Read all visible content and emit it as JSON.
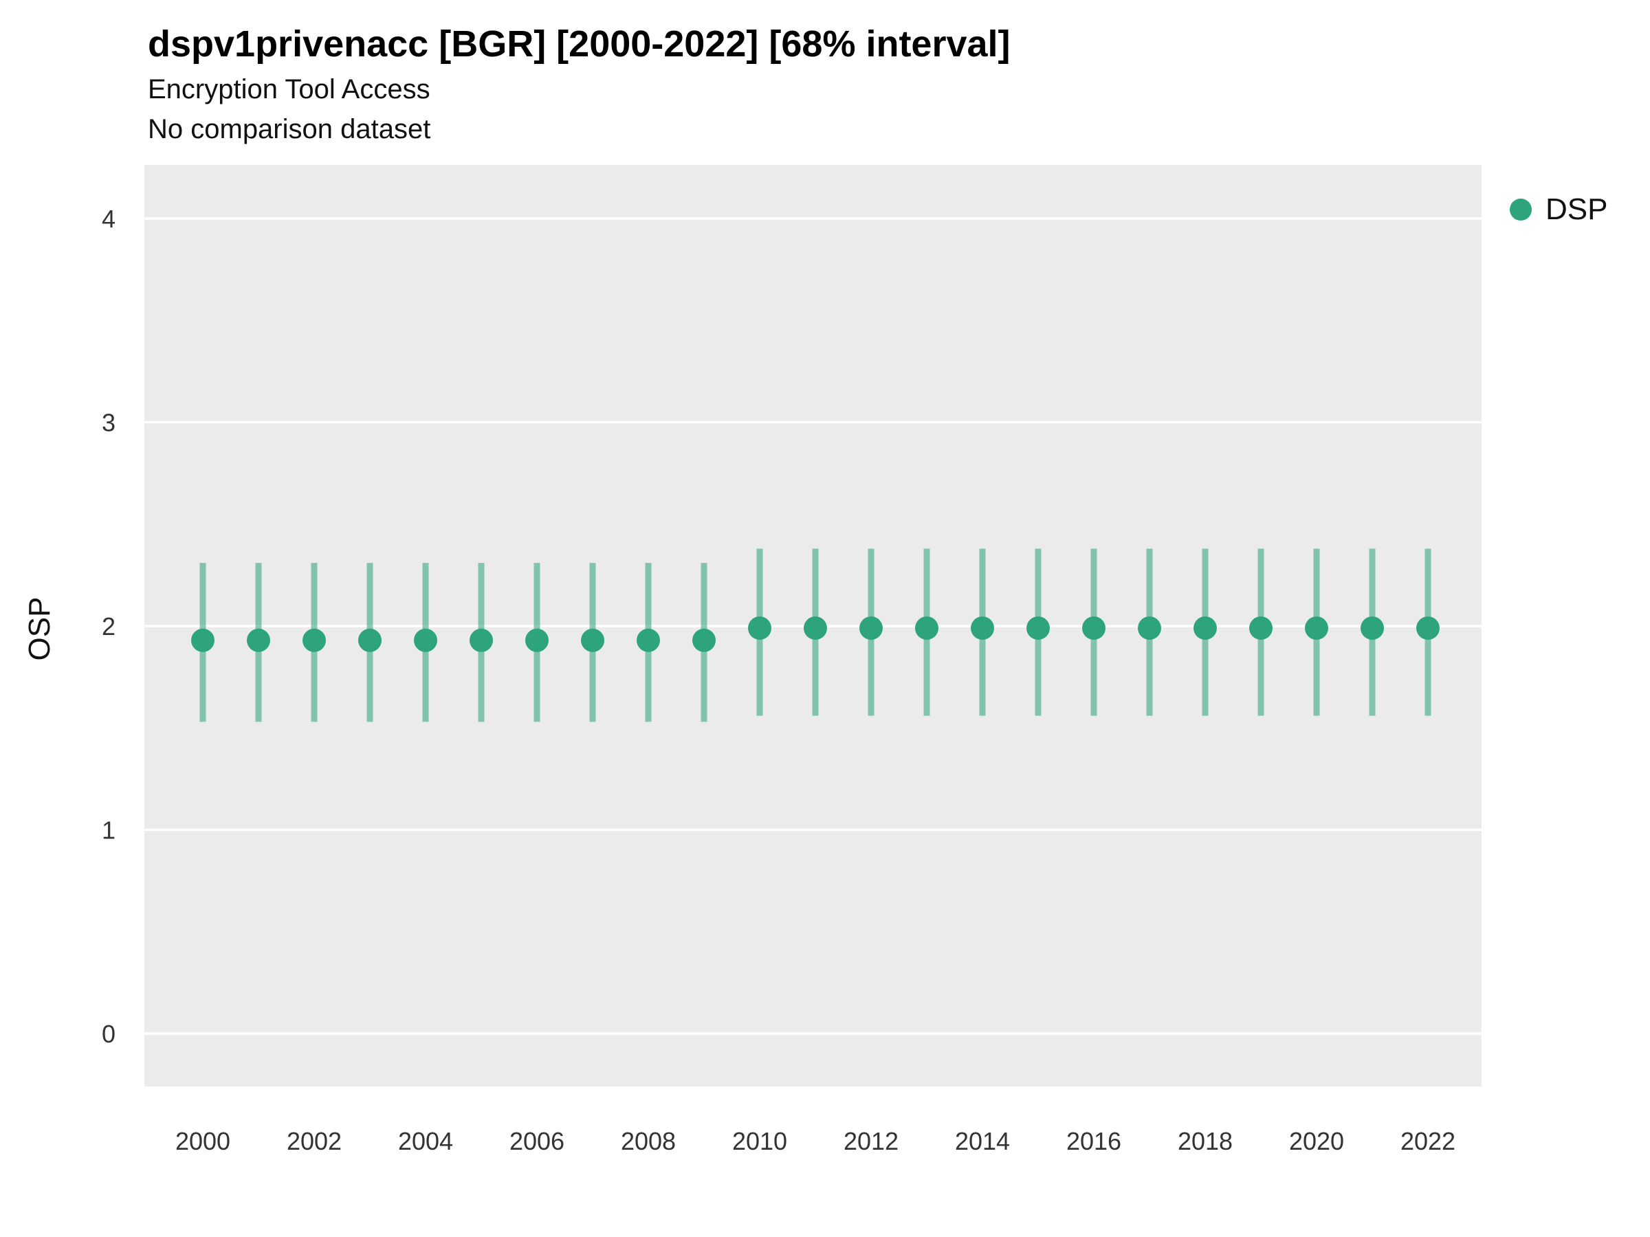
{
  "chart_data": {
    "type": "pointrange",
    "title": "dspv1privenacc [BGR] [2000-2022] [68% interval]",
    "subtitle": "Encryption Tool Access",
    "note": "No comparison dataset",
    "xlabel": "",
    "ylabel": "OSP",
    "ylim": [
      -0.26,
      4.26
    ],
    "yticks": [
      0,
      1,
      2,
      3,
      4
    ],
    "xtick_labels": [
      2000,
      2002,
      2004,
      2006,
      2008,
      2010,
      2012,
      2014,
      2016,
      2018,
      2020,
      2022
    ],
    "plot_bg": "#ebebeb",
    "grid_color": "#ffffff",
    "tick_label_color": "#333333",
    "legend_position": "right",
    "series": [
      {
        "name": "DSP",
        "color": "#2ea47c",
        "points": [
          {
            "year": 2000,
            "y": 1.93,
            "ymin": 1.53,
            "ymax": 2.31
          },
          {
            "year": 2001,
            "y": 1.93,
            "ymin": 1.53,
            "ymax": 2.31
          },
          {
            "year": 2002,
            "y": 1.93,
            "ymin": 1.53,
            "ymax": 2.31
          },
          {
            "year": 2003,
            "y": 1.93,
            "ymin": 1.53,
            "ymax": 2.31
          },
          {
            "year": 2004,
            "y": 1.93,
            "ymin": 1.53,
            "ymax": 2.31
          },
          {
            "year": 2005,
            "y": 1.93,
            "ymin": 1.53,
            "ymax": 2.31
          },
          {
            "year": 2006,
            "y": 1.93,
            "ymin": 1.53,
            "ymax": 2.31
          },
          {
            "year": 2007,
            "y": 1.93,
            "ymin": 1.53,
            "ymax": 2.31
          },
          {
            "year": 2008,
            "y": 1.93,
            "ymin": 1.53,
            "ymax": 2.31
          },
          {
            "year": 2009,
            "y": 1.93,
            "ymin": 1.53,
            "ymax": 2.31
          },
          {
            "year": 2010,
            "y": 1.99,
            "ymin": 1.56,
            "ymax": 2.38
          },
          {
            "year": 2011,
            "y": 1.99,
            "ymin": 1.56,
            "ymax": 2.38
          },
          {
            "year": 2012,
            "y": 1.99,
            "ymin": 1.56,
            "ymax": 2.38
          },
          {
            "year": 2013,
            "y": 1.99,
            "ymin": 1.56,
            "ymax": 2.38
          },
          {
            "year": 2014,
            "y": 1.99,
            "ymin": 1.56,
            "ymax": 2.38
          },
          {
            "year": 2015,
            "y": 1.99,
            "ymin": 1.56,
            "ymax": 2.38
          },
          {
            "year": 2016,
            "y": 1.99,
            "ymin": 1.56,
            "ymax": 2.38
          },
          {
            "year": 2017,
            "y": 1.99,
            "ymin": 1.56,
            "ymax": 2.38
          },
          {
            "year": 2018,
            "y": 1.99,
            "ymin": 1.56,
            "ymax": 2.38
          },
          {
            "year": 2019,
            "y": 1.99,
            "ymin": 1.56,
            "ymax": 2.38
          },
          {
            "year": 2020,
            "y": 1.99,
            "ymin": 1.56,
            "ymax": 2.38
          },
          {
            "year": 2021,
            "y": 1.99,
            "ymin": 1.56,
            "ymax": 2.38
          },
          {
            "year": 2022,
            "y": 1.99,
            "ymin": 1.56,
            "ymax": 2.38
          }
        ]
      }
    ]
  }
}
